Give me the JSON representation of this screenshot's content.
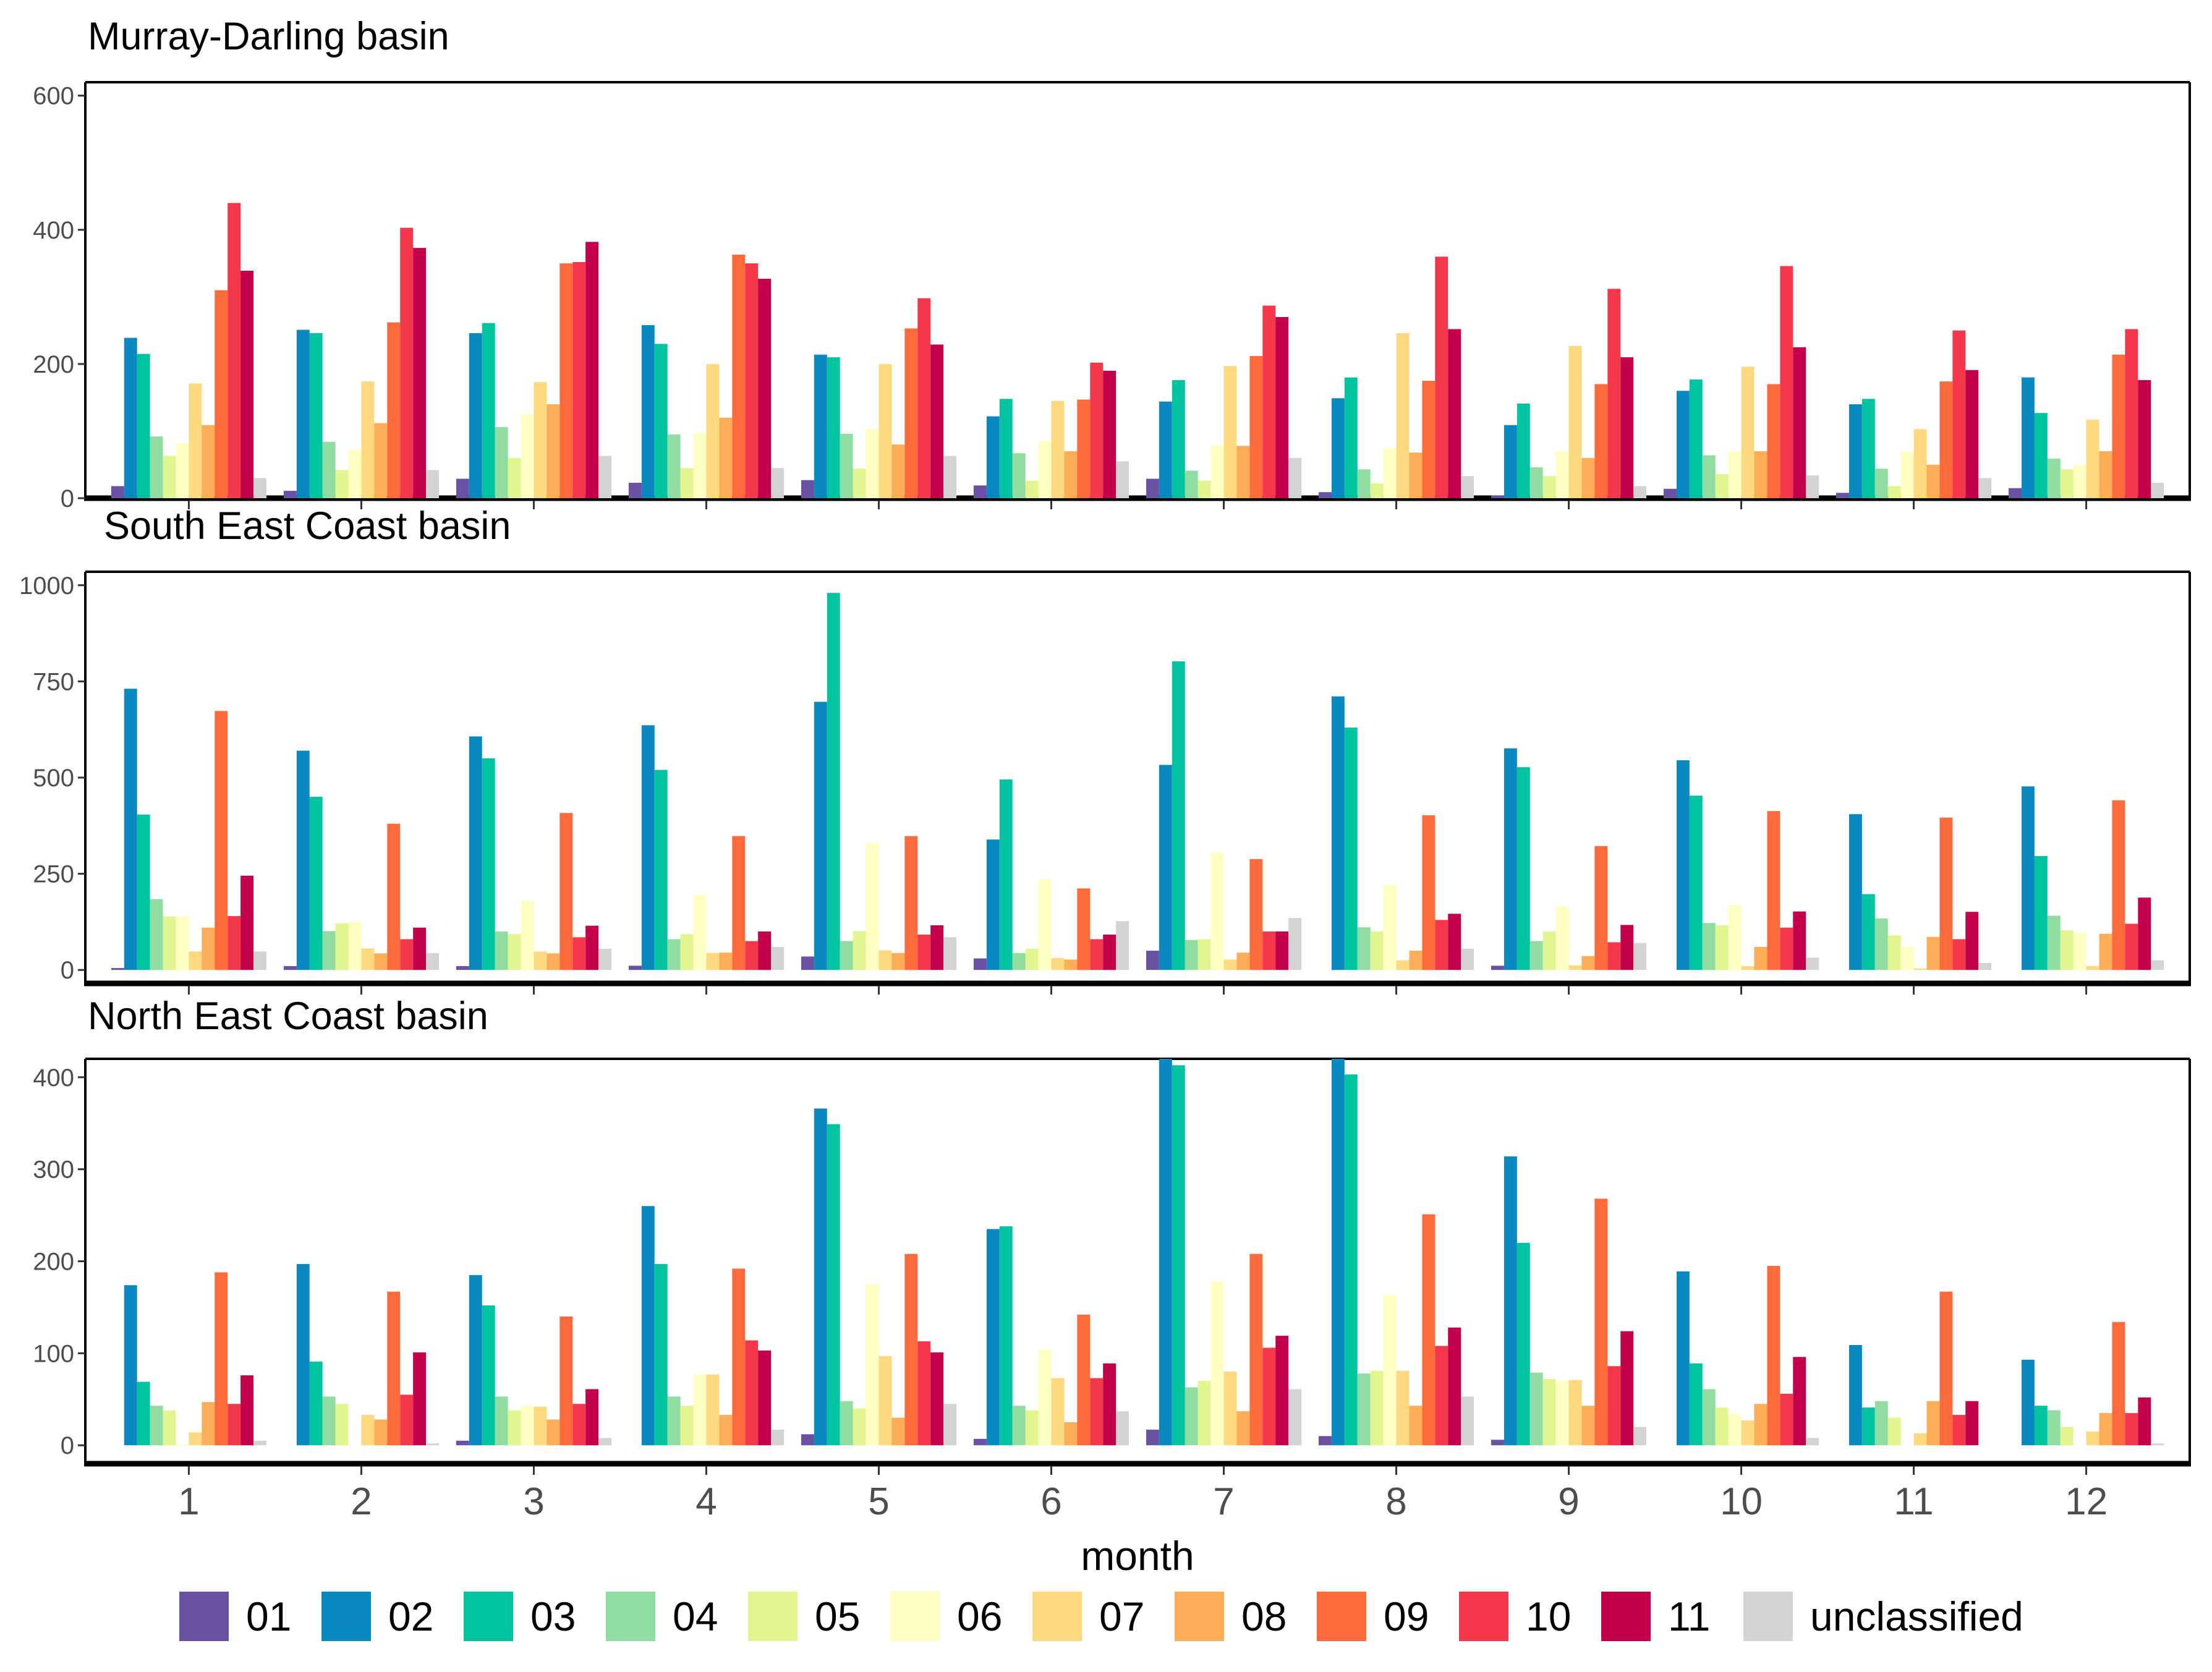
{
  "chart_data": {
    "type": "bar",
    "xlabel": "month",
    "categories": [
      "1",
      "2",
      "3",
      "4",
      "5",
      "6",
      "7",
      "8",
      "9",
      "10",
      "11",
      "12"
    ],
    "legend": {
      "position": "bottom",
      "entries": [
        "01",
        "02",
        "03",
        "04",
        "05",
        "06",
        "07",
        "08",
        "09",
        "10",
        "11",
        "unclassified"
      ]
    },
    "colors": [
      "#6a51a3",
      "#0a89c0",
      "#00c3a0",
      "#91dca0",
      "#e1f591",
      "#ffffc4",
      "#fed980",
      "#fdac58",
      "#fd6b3d",
      "#f5374b",
      "#c4004c",
      "#d3d3d3"
    ],
    "grid": false,
    "panels": [
      {
        "title": "Murray-Darling basin",
        "ylim": [
          0,
          620
        ],
        "yticks": [
          0,
          200,
          400,
          600
        ],
        "series": [
          {
            "name": "01",
            "values": [
              18,
              11,
              29,
              23,
              27,
              19,
              29,
              9,
              4,
              14,
              8,
              15
            ]
          },
          {
            "name": "02",
            "values": [
              239,
              251,
              246,
              258,
              214,
              122,
              144,
              149,
              109,
              160,
              140,
              180
            ]
          },
          {
            "name": "03",
            "values": [
              215,
              246,
              261,
              230,
              210,
              148,
              176,
              180,
              141,
              177,
              148,
              127
            ]
          },
          {
            "name": "04",
            "values": [
              92,
              84,
              106,
              95,
              96,
              67,
              41,
              43,
              46,
              64,
              44,
              59
            ]
          },
          {
            "name": "05",
            "values": [
              63,
              42,
              60,
              45,
              44,
              26,
              26,
              22,
              33,
              36,
              18,
              43
            ]
          },
          {
            "name": "06",
            "values": [
              82,
              72,
              125,
              97,
              103,
              85,
              79,
              75,
              70,
              70,
              70,
              50
            ]
          },
          {
            "name": "07",
            "values": [
              171,
              174,
              173,
              200,
              200,
              145,
              197,
              246,
              227,
              196,
              103,
              117
            ]
          },
          {
            "name": "08",
            "values": [
              109,
              112,
              140,
              120,
              80,
              70,
              78,
              68,
              60,
              70,
              50,
              70
            ]
          },
          {
            "name": "09",
            "values": [
              310,
              262,
              350,
              363,
              253,
              147,
              212,
              175,
              170,
              170,
              174,
              214
            ]
          },
          {
            "name": "10",
            "values": [
              440,
              403,
              352,
              350,
              298,
              202,
              287,
              360,
              312,
              346,
              250,
              252
            ]
          },
          {
            "name": "11",
            "values": [
              339,
              373,
              382,
              327,
              229,
              190,
              270,
              252,
              210,
              225,
              191,
              176
            ]
          },
          {
            "name": "unclassified",
            "values": [
              30,
              42,
              63,
              45,
              63,
              55,
              60,
              33,
              18,
              34,
              30,
              23
            ]
          }
        ]
      },
      {
        "title": "South East Coast basin",
        "ylim": [
          -35,
          1035
        ],
        "yticks": [
          0,
          250,
          500,
          750,
          1000
        ],
        "series": [
          {
            "name": "01",
            "values": [
              5,
              10,
              10,
              11,
              35,
              30,
              50,
              0,
              11,
              0,
              0,
              0
            ]
          },
          {
            "name": "02",
            "values": [
              731,
              570,
              607,
              636,
              697,
              339,
              533,
              711,
              576,
              545,
              405,
              477
            ]
          },
          {
            "name": "03",
            "values": [
              404,
              450,
              550,
              520,
              980,
              495,
              802,
              630,
              527,
              453,
              197,
              296
            ]
          },
          {
            "name": "04",
            "values": [
              184,
              101,
              100,
              80,
              75,
              44,
              78,
              111,
              75,
              122,
              134,
              141
            ]
          },
          {
            "name": "05",
            "values": [
              139,
              121,
              93,
              93,
              101,
              55,
              80,
              100,
              100,
              116,
              90,
              103
            ]
          },
          {
            "name": "06",
            "values": [
              139,
              125,
              180,
              195,
              330,
              235,
              305,
              221,
              166,
              168,
              60,
              96
            ]
          },
          {
            "name": "07",
            "values": [
              48,
              56,
              48,
              44,
              51,
              31,
              27,
              25,
              12,
              10,
              4,
              10
            ]
          },
          {
            "name": "08",
            "values": [
              110,
              43,
              43,
              45,
              44,
              27,
              45,
              50,
              36,
              60,
              86,
              94
            ]
          },
          {
            "name": "09",
            "values": [
              673,
              380,
              408,
              348,
              348,
              212,
              288,
              402,
              322,
              413,
              396,
              441
            ]
          },
          {
            "name": "10",
            "values": [
              140,
              80,
              85,
              75,
              92,
              80,
              100,
              130,
              72,
              110,
              80,
              120
            ]
          },
          {
            "name": "11",
            "values": [
              245,
              110,
              115,
              100,
              116,
              92,
              100,
              146,
              117,
              152,
              151,
              188
            ]
          },
          {
            "name": "unclassified",
            "values": [
              48,
              44,
              55,
              60,
              85,
              127,
              135,
              55,
              70,
              32,
              18,
              25
            ]
          }
        ]
      },
      {
        "title": "North East Coast basin",
        "ylim": [
          -20,
          420
        ],
        "yticks": [
          0,
          100,
          200,
          300,
          400
        ],
        "series": [
          {
            "name": "01",
            "values": [
              0,
              0,
              5,
              0,
              12,
              7,
              17,
              10,
              6,
              0,
              0,
              0
            ]
          },
          {
            "name": "02",
            "values": [
              174,
              197,
              185,
              260,
              366,
              235,
              420,
              420,
              314,
              189,
              109,
              93
            ]
          },
          {
            "name": "03",
            "values": [
              69,
              91,
              152,
              197,
              349,
              238,
              413,
              403,
              220,
              89,
              41,
              43
            ]
          },
          {
            "name": "04",
            "values": [
              43,
              53,
              53,
              53,
              48,
              43,
              63,
              78,
              79,
              61,
              48,
              38
            ]
          },
          {
            "name": "05",
            "values": [
              38,
              45,
              38,
              43,
              40,
              38,
              70,
              81,
              72,
              41,
              30,
              20
            ]
          },
          {
            "name": "06",
            "values": [
              1,
              0,
              43,
              77,
              175,
              104,
              178,
              163,
              70,
              34,
              0,
              0
            ]
          },
          {
            "name": "07",
            "values": [
              14,
              33,
              42,
              77,
              97,
              73,
              80,
              81,
              71,
              27,
              13,
              15
            ]
          },
          {
            "name": "08",
            "values": [
              47,
              28,
              28,
              33,
              30,
              25,
              37,
              43,
              43,
              45,
              48,
              35
            ]
          },
          {
            "name": "09",
            "values": [
              188,
              167,
              140,
              192,
              208,
              142,
              208,
              251,
              268,
              195,
              167,
              134
            ]
          },
          {
            "name": "10",
            "values": [
              45,
              55,
              45,
              114,
              113,
              73,
              106,
              108,
              86,
              56,
              33,
              35
            ]
          },
          {
            "name": "11",
            "values": [
              76,
              101,
              61,
              103,
              101,
              89,
              119,
              128,
              124,
              96,
              48,
              52
            ]
          },
          {
            "name": "unclassified",
            "values": [
              5,
              2,
              8,
              17,
              45,
              37,
              61,
              53,
              20,
              8,
              0,
              2
            ]
          }
        ]
      }
    ]
  }
}
